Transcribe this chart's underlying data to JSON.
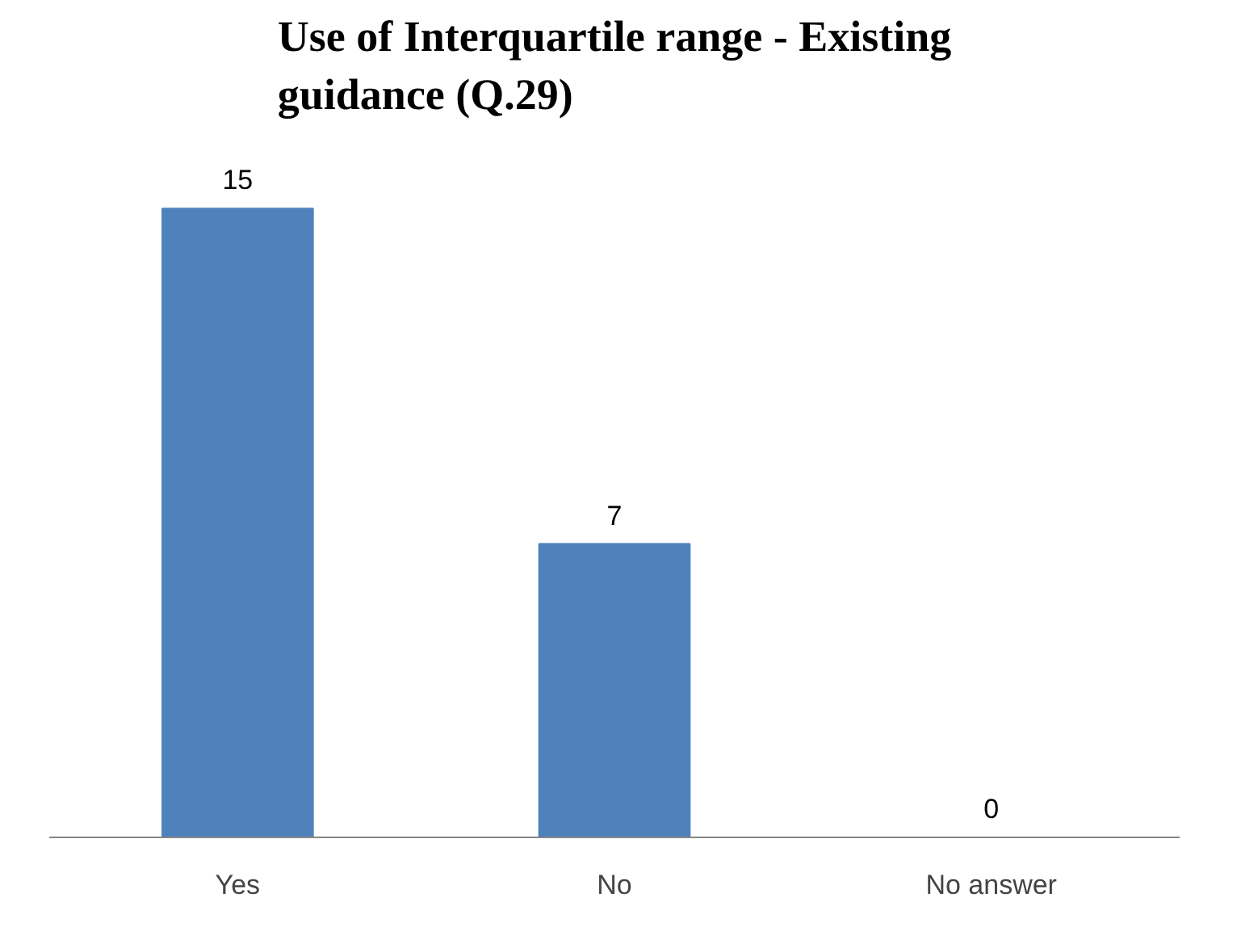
{
  "chart_data": {
    "type": "bar",
    "title": "Use of Interquartile range - Existing guidance (Q.29)",
    "categories": [
      "Yes",
      "No",
      "No answer"
    ],
    "values": [
      15,
      7,
      0
    ],
    "color": "#4f81bd",
    "data_labels": true,
    "grid": false
  }
}
